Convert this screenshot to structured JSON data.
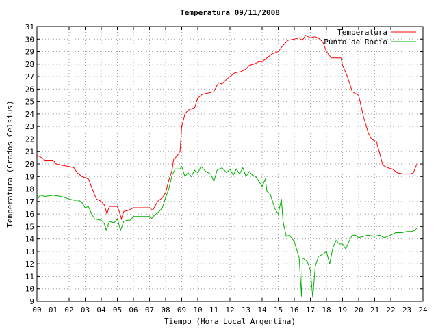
{
  "chart_data": {
    "type": "line",
    "title": "Temperatura 09/11/2008",
    "xlabel": "Tiempo (Hora Local Argentina)",
    "ylabel": "Temperatura (Grados Celsius)",
    "xlim": [
      0,
      24
    ],
    "ylim": [
      9,
      31
    ],
    "x_ticks": [
      "00",
      "01",
      "02",
      "03",
      "04",
      "05",
      "06",
      "07",
      "08",
      "09",
      "10",
      "11",
      "12",
      "13",
      "14",
      "15",
      "16",
      "17",
      "18",
      "19",
      "20",
      "21",
      "22",
      "23",
      "24"
    ],
    "y_ticks": [
      9,
      10,
      11,
      12,
      13,
      14,
      15,
      16,
      17,
      18,
      19,
      20,
      21,
      22,
      23,
      24,
      25,
      26,
      27,
      28,
      29,
      30,
      31
    ],
    "grid": true,
    "legend_position": "top-right",
    "series": [
      {
        "name": "Temperatura",
        "color": "#ff0000",
        "points": [
          [
            0.0,
            20.7
          ],
          [
            0.3,
            20.5
          ],
          [
            0.5,
            20.3
          ],
          [
            1.0,
            20.3
          ],
          [
            1.2,
            20.0
          ],
          [
            1.5,
            19.9
          ],
          [
            2.0,
            19.8
          ],
          [
            2.3,
            19.7
          ],
          [
            2.5,
            19.3
          ],
          [
            2.8,
            19.0
          ],
          [
            3.0,
            18.9
          ],
          [
            3.2,
            18.8
          ],
          [
            3.5,
            17.8
          ],
          [
            3.7,
            17.2
          ],
          [
            4.0,
            17.0
          ],
          [
            4.2,
            16.7
          ],
          [
            4.35,
            16.0
          ],
          [
            4.5,
            16.6
          ],
          [
            5.0,
            16.6
          ],
          [
            5.15,
            16.1
          ],
          [
            5.25,
            15.6
          ],
          [
            5.4,
            16.2
          ],
          [
            5.7,
            16.3
          ],
          [
            6.0,
            16.5
          ],
          [
            6.5,
            16.5
          ],
          [
            7.0,
            16.5
          ],
          [
            7.2,
            16.3
          ],
          [
            7.5,
            17.0
          ],
          [
            7.8,
            17.3
          ],
          [
            8.0,
            17.7
          ],
          [
            8.2,
            18.7
          ],
          [
            8.4,
            19.5
          ],
          [
            8.5,
            20.4
          ],
          [
            8.7,
            20.6
          ],
          [
            8.9,
            21.0
          ],
          [
            9.0,
            23.0
          ],
          [
            9.2,
            24.0
          ],
          [
            9.4,
            24.3
          ],
          [
            9.8,
            24.5
          ],
          [
            10.0,
            25.3
          ],
          [
            10.3,
            25.6
          ],
          [
            10.7,
            25.7
          ],
          [
            11.0,
            25.8
          ],
          [
            11.2,
            26.3
          ],
          [
            11.3,
            26.5
          ],
          [
            11.5,
            26.4
          ],
          [
            11.8,
            26.8
          ],
          [
            12.0,
            27.0
          ],
          [
            12.3,
            27.3
          ],
          [
            12.7,
            27.4
          ],
          [
            13.0,
            27.6
          ],
          [
            13.2,
            27.9
          ],
          [
            13.5,
            28.0
          ],
          [
            13.8,
            28.2
          ],
          [
            14.0,
            28.2
          ],
          [
            14.3,
            28.5
          ],
          [
            14.6,
            28.8
          ],
          [
            15.0,
            29.0
          ],
          [
            15.3,
            29.5
          ],
          [
            15.6,
            29.9
          ],
          [
            16.0,
            30.0
          ],
          [
            16.3,
            30.1
          ],
          [
            16.5,
            29.9
          ],
          [
            16.7,
            30.3
          ],
          [
            17.0,
            30.1
          ],
          [
            17.3,
            30.2
          ],
          [
            17.6,
            30.0
          ],
          [
            17.8,
            29.7
          ],
          [
            18.0,
            29.0
          ],
          [
            18.3,
            28.5
          ],
          [
            18.9,
            28.5
          ],
          [
            19.0,
            27.9
          ],
          [
            19.3,
            27.0
          ],
          [
            19.6,
            25.8
          ],
          [
            20.0,
            25.5
          ],
          [
            20.3,
            23.8
          ],
          [
            20.6,
            22.5
          ],
          [
            20.8,
            22.0
          ],
          [
            21.1,
            21.8
          ],
          [
            21.3,
            20.9
          ],
          [
            21.5,
            19.9
          ],
          [
            21.8,
            19.7
          ],
          [
            22.1,
            19.6
          ],
          [
            22.4,
            19.3
          ],
          [
            22.8,
            19.2
          ],
          [
            23.2,
            19.2
          ],
          [
            23.4,
            19.3
          ],
          [
            23.65,
            20.1
          ]
        ]
      },
      {
        "name": "Punto de Rocío",
        "color": "#00b000",
        "points": [
          [
            0.0,
            17.6
          ],
          [
            0.1,
            17.3
          ],
          [
            0.2,
            17.5
          ],
          [
            0.5,
            17.4
          ],
          [
            1.0,
            17.5
          ],
          [
            1.5,
            17.4
          ],
          [
            2.0,
            17.2
          ],
          [
            2.3,
            17.1
          ],
          [
            2.6,
            17.1
          ],
          [
            2.8,
            16.9
          ],
          [
            3.0,
            16.5
          ],
          [
            3.2,
            16.6
          ],
          [
            3.4,
            16.0
          ],
          [
            3.6,
            15.6
          ],
          [
            4.0,
            15.5
          ],
          [
            4.2,
            15.2
          ],
          [
            4.3,
            14.7
          ],
          [
            4.5,
            15.4
          ],
          [
            4.8,
            15.3
          ],
          [
            5.0,
            15.6
          ],
          [
            5.2,
            14.7
          ],
          [
            5.4,
            15.4
          ],
          [
            5.6,
            15.5
          ],
          [
            5.8,
            15.5
          ],
          [
            6.0,
            15.8
          ],
          [
            6.5,
            15.8
          ],
          [
            7.0,
            15.8
          ],
          [
            7.1,
            15.6
          ],
          [
            7.3,
            15.9
          ],
          [
            7.6,
            16.2
          ],
          [
            7.8,
            16.5
          ],
          [
            8.0,
            17.3
          ],
          [
            8.2,
            18.0
          ],
          [
            8.4,
            19.1
          ],
          [
            8.6,
            19.6
          ],
          [
            8.9,
            19.6
          ],
          [
            9.0,
            19.8
          ],
          [
            9.2,
            19.0
          ],
          [
            9.4,
            19.3
          ],
          [
            9.6,
            19.0
          ],
          [
            9.8,
            19.5
          ],
          [
            10.0,
            19.3
          ],
          [
            10.2,
            19.8
          ],
          [
            10.5,
            19.4
          ],
          [
            10.8,
            19.2
          ],
          [
            11.0,
            18.6
          ],
          [
            11.2,
            19.5
          ],
          [
            11.5,
            19.7
          ],
          [
            11.8,
            19.3
          ],
          [
            12.0,
            19.6
          ],
          [
            12.2,
            19.1
          ],
          [
            12.4,
            19.6
          ],
          [
            12.6,
            19.2
          ],
          [
            12.8,
            19.7
          ],
          [
            13.0,
            19.0
          ],
          [
            13.2,
            19.4
          ],
          [
            13.4,
            19.1
          ],
          [
            13.6,
            19.0
          ],
          [
            13.8,
            18.6
          ],
          [
            14.0,
            18.2
          ],
          [
            14.2,
            18.8
          ],
          [
            14.3,
            17.8
          ],
          [
            14.5,
            17.6
          ],
          [
            14.8,
            16.4
          ],
          [
            15.0,
            16.0
          ],
          [
            15.2,
            17.2
          ],
          [
            15.3,
            15.4
          ],
          [
            15.5,
            14.2
          ],
          [
            15.7,
            14.3
          ],
          [
            16.0,
            13.8
          ],
          [
            16.3,
            12.5
          ],
          [
            16.45,
            9.4
          ],
          [
            16.5,
            12.5
          ],
          [
            16.8,
            12.2
          ],
          [
            17.0,
            11.5
          ],
          [
            17.15,
            9.3
          ],
          [
            17.3,
            11.8
          ],
          [
            17.5,
            12.6
          ],
          [
            17.8,
            12.8
          ],
          [
            18.0,
            13.0
          ],
          [
            18.2,
            12.0
          ],
          [
            18.4,
            13.3
          ],
          [
            18.6,
            13.9
          ],
          [
            18.8,
            13.6
          ],
          [
            19.0,
            13.6
          ],
          [
            19.2,
            13.2
          ],
          [
            19.4,
            13.8
          ],
          [
            19.6,
            14.3
          ],
          [
            19.8,
            14.3
          ],
          [
            20.0,
            14.1
          ],
          [
            20.3,
            14.2
          ],
          [
            20.6,
            14.3
          ],
          [
            21.0,
            14.2
          ],
          [
            21.3,
            14.3
          ],
          [
            21.6,
            14.1
          ],
          [
            22.0,
            14.3
          ],
          [
            22.3,
            14.5
          ],
          [
            22.7,
            14.5
          ],
          [
            23.0,
            14.6
          ],
          [
            23.3,
            14.6
          ],
          [
            23.5,
            14.7
          ],
          [
            23.65,
            14.9
          ]
        ]
      }
    ]
  }
}
